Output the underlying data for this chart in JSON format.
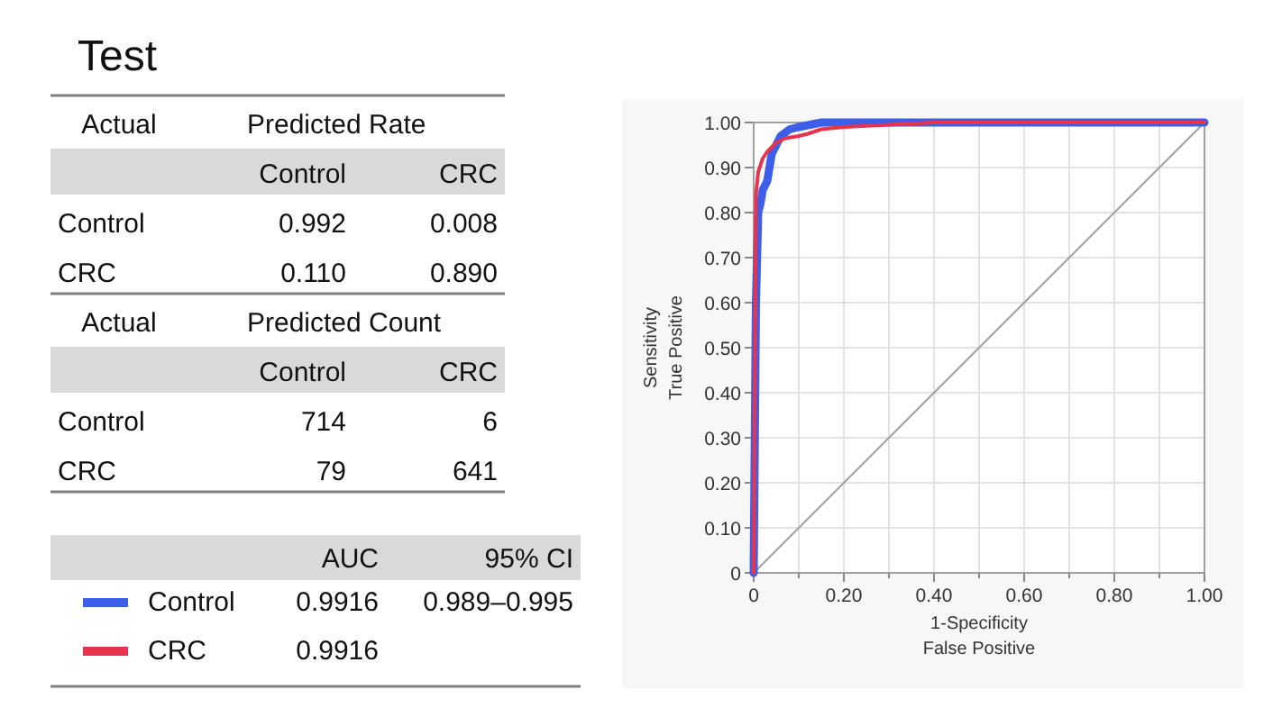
{
  "chart_data": [
    {
      "type": "other",
      "title": "Test",
      "annotations": [
        "Actual\tPredicted Rate",
        "\tControl\tCRC",
        "Control\t0.992\t0.008",
        "CRC\t0.110\t0.890",
        "Actual\tPredicted Count",
        "\tControl\tCRC",
        "Control\t714\t6",
        "CRC\t79\t641"
      ]
    },
    {
      "type": "line",
      "xlabel": "1-Specificity\nFalse Positive",
      "ylabel": "Sensitivity\nTrue Positive",
      "xlim": [
        0,
        1
      ],
      "ylim": [
        0,
        1
      ],
      "xticks": [
        0,
        {
          "value": 0.1,
          "label": null
        },
        {
          "value": 0.2,
          "label": "0.20"
        },
        {
          "value": 0.3,
          "label": null
        },
        {
          "value": 0.4,
          "label": "0.40"
        },
        {
          "value": 0.5,
          "label": null
        },
        {
          "value": 0.6,
          "label": "0.60"
        },
        {
          "value": 0.7,
          "label": null
        },
        {
          "value": 0.8,
          "label": "0.80"
        },
        {
          "value": 0.9,
          "label": null
        },
        {
          "value": 1,
          "label": "1.00"
        }
      ],
      "yticks": [
        0,
        {
          "value": 0.1,
          "label": "0.10"
        },
        {
          "value": 0.2,
          "label": "0.20"
        },
        {
          "value": 0.3,
          "label": "0.30"
        },
        {
          "value": 0.4,
          "label": "0.40"
        },
        {
          "value": 0.5,
          "label": "0.50"
        },
        {
          "value": 0.6,
          "label": "0.60"
        },
        {
          "value": 0.7,
          "label": "0.70"
        },
        {
          "value": 0.8,
          "label": "0.80"
        },
        {
          "value": 0.9,
          "label": "0.90"
        },
        {
          "value": 1,
          "label": "1.00"
        }
      ],
      "grid": true,
      "legend": "left",
      "marker": "none",
      "line_style": "solid",
      "annotations": [
        "\tAUC\t95% CI",
        "0.9916\t0.989–0.995",
        "0.9916"
      ],
      "series": [
        {
          "color": "#a0a0a0",
          "x": [
            0,
            1
          ],
          "values": [
            0,
            1
          ]
        },
        {
          "name": "Control",
          "color": "#3d5ee8",
          "x": [
            0,
            0.005,
            0.01,
            0.015,
            0.02,
            0.03,
            0.035,
            0.04,
            0.05,
            0.06,
            0.08,
            0.1,
            0.15,
            1
          ],
          "values": [
            0,
            0.6,
            0.8,
            0.82,
            0.85,
            0.87,
            0.9,
            0.93,
            0.95,
            0.97,
            0.985,
            0.99,
            1.0,
            1.0
          ]
        },
        {
          "name": "CRC",
          "color": "#e8334d",
          "x": [
            0,
            0.005,
            0.01,
            0.02,
            0.03,
            0.05,
            0.07,
            0.1,
            0.12,
            0.15,
            0.2,
            0.3,
            0.4,
            1
          ],
          "values": [
            0,
            0.84,
            0.89,
            0.92,
            0.935,
            0.955,
            0.965,
            0.97,
            0.975,
            0.985,
            0.99,
            0.995,
            1.0,
            1.0
          ]
        }
      ]
    }
  ]
}
